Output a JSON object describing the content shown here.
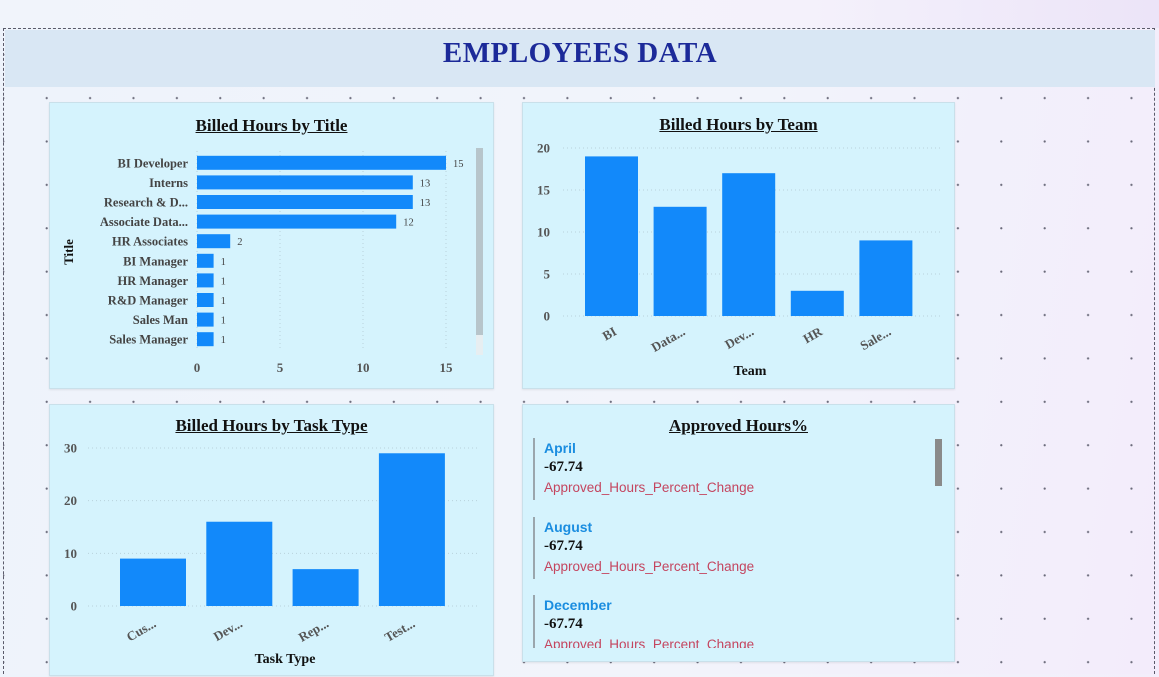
{
  "page": {
    "title": "EMPLOYEES DATA"
  },
  "colors": {
    "bar": "#1289fa",
    "title": "#1c2a99",
    "card_bg": "#d5f3fd",
    "kpi_month": "#1a8de0",
    "kpi_label": "#c4455f"
  },
  "cards": {
    "by_title": {
      "title": "Billed Hours by Title"
    },
    "by_team": {
      "title": "Billed Hours by Team"
    },
    "by_task": {
      "title": "Billed Hours by Task Type"
    },
    "approved": {
      "title": "Approved Hours%",
      "items": [
        {
          "month": "April",
          "value": "-67.74",
          "label": "Approved_Hours_Percent_Change"
        },
        {
          "month": "August",
          "value": "-67.74",
          "label": "Approved_Hours_Percent_Change"
        },
        {
          "month": "December",
          "value": "-67.74",
          "label": "Approved_Hours_Percent_Change"
        }
      ]
    }
  },
  "chart_data": [
    {
      "type": "bar",
      "orientation": "horizontal",
      "title": "Billed Hours by Title",
      "ylabel": "Title",
      "xlabel": "",
      "categories": [
        "BI Developer",
        "Interns",
        "Research & D...",
        "Associate Data...",
        "HR Associates",
        "BI Manager",
        "HR Manager",
        "R&D Manager",
        "Sales Man",
        "Sales Manager"
      ],
      "values": [
        15,
        13,
        13,
        12,
        2,
        1,
        1,
        1,
        1,
        1
      ],
      "xticks": [
        0,
        5,
        10,
        15
      ],
      "xlim": [
        0,
        15
      ],
      "data_labels": true,
      "grid": true
    },
    {
      "type": "bar",
      "title": "Billed Hours by Team",
      "xlabel": "Team",
      "ylabel": "",
      "categories": [
        "BI",
        "Data...",
        "Dev...",
        "HR",
        "Sale..."
      ],
      "values": [
        19,
        13,
        17,
        3,
        9
      ],
      "yticks": [
        0,
        5,
        10,
        15,
        20
      ],
      "ylim": [
        0,
        20
      ],
      "grid": true
    },
    {
      "type": "bar",
      "title": "Billed Hours by Task Type",
      "xlabel": "Task Type",
      "ylabel": "",
      "categories": [
        "Cus...",
        "Dev...",
        "Rep...",
        "Test..."
      ],
      "values": [
        9,
        16,
        7,
        29
      ],
      "yticks": [
        0,
        10,
        20,
        30
      ],
      "ylim": [
        0,
        30
      ],
      "grid": true
    }
  ]
}
